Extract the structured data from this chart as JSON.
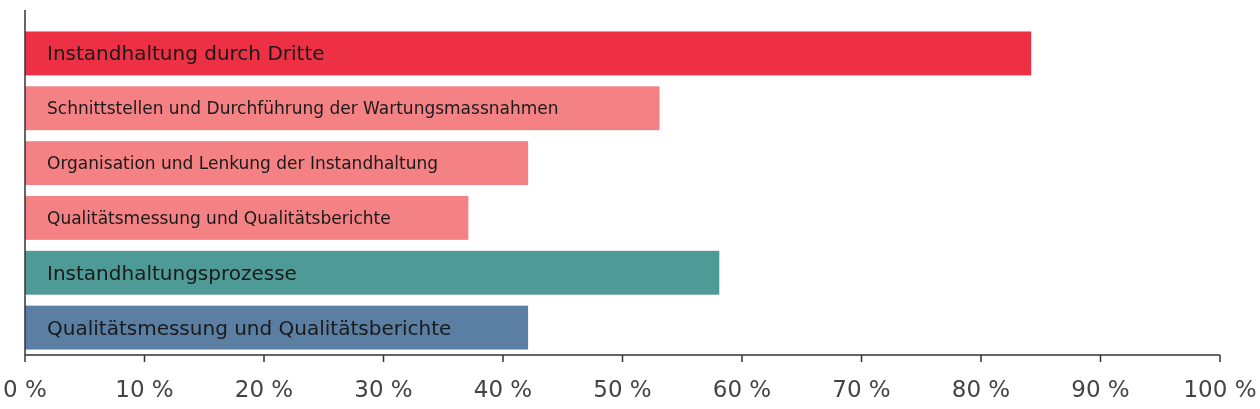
{
  "chart_data": {
    "type": "bar",
    "orientation": "horizontal",
    "categories": [
      "Instandhaltung durch Dritte",
      "Schnittstellen und Durchführung der Wartungsmassnahmen",
      "Organisation und Lenkung der Instandhaltung",
      "Qualitätsmessung und Qualitätsberichte",
      "Instandhaltungsprozesse",
      "Qualitätsmessung und Qualitätsberichte"
    ],
    "values": [
      84.2,
      53.1,
      42.1,
      37.1,
      58.1,
      42.1
    ],
    "colors": [
      "#ee3045",
      "#f48184",
      "#f48184",
      "#f48184",
      "#4d9a96",
      "#5a7fa3"
    ],
    "xlim": [
      0,
      100
    ],
    "xticks": [
      {
        "value": 0,
        "label": "0 %"
      },
      {
        "value": 10,
        "label": "10 %"
      },
      {
        "value": 20,
        "label": "20 %"
      },
      {
        "value": 30,
        "label": "30 %"
      },
      {
        "value": 40,
        "label": "40 %"
      },
      {
        "value": 50,
        "label": "50 %"
      },
      {
        "value": 60,
        "label": "60 %"
      },
      {
        "value": 70,
        "label": "70 %"
      },
      {
        "value": 80,
        "label": "80 %"
      },
      {
        "value": 90,
        "label": "90 %"
      },
      {
        "value": 100,
        "label": "100 %"
      }
    ],
    "grid": false
  }
}
